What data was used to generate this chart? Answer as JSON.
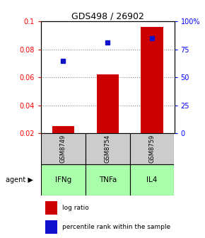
{
  "title": "GDS498 / 26902",
  "samples": [
    "GSM8749",
    "GSM8754",
    "GSM8759"
  ],
  "agents": [
    "IFNg",
    "TNFa",
    "IL4"
  ],
  "log_ratio": [
    0.025,
    0.062,
    0.096
  ],
  "percentile_pct": [
    65,
    81,
    85
  ],
  "ylim_left": [
    0.02,
    0.1
  ],
  "ylim_right": [
    0.0,
    100.0
  ],
  "yticks_left": [
    0.02,
    0.04,
    0.06,
    0.08,
    0.1
  ],
  "ytick_labels_left": [
    "0.02",
    "0.04",
    "0.06",
    "0.08",
    "0.1"
  ],
  "yticks_right": [
    0,
    25,
    50,
    75,
    100
  ],
  "ytick_labels_right": [
    "0",
    "25",
    "50",
    "75",
    "100%"
  ],
  "bar_color": "#cc0000",
  "dot_color": "#1111cc",
  "grid_color": "#888888",
  "sample_box_color": "#cccccc",
  "agent_box_color": "#aaffaa",
  "legend_bar_label": "log ratio",
  "legend_dot_label": "percentile rank within the sample",
  "agent_label": "agent",
  "bar_width": 0.5
}
